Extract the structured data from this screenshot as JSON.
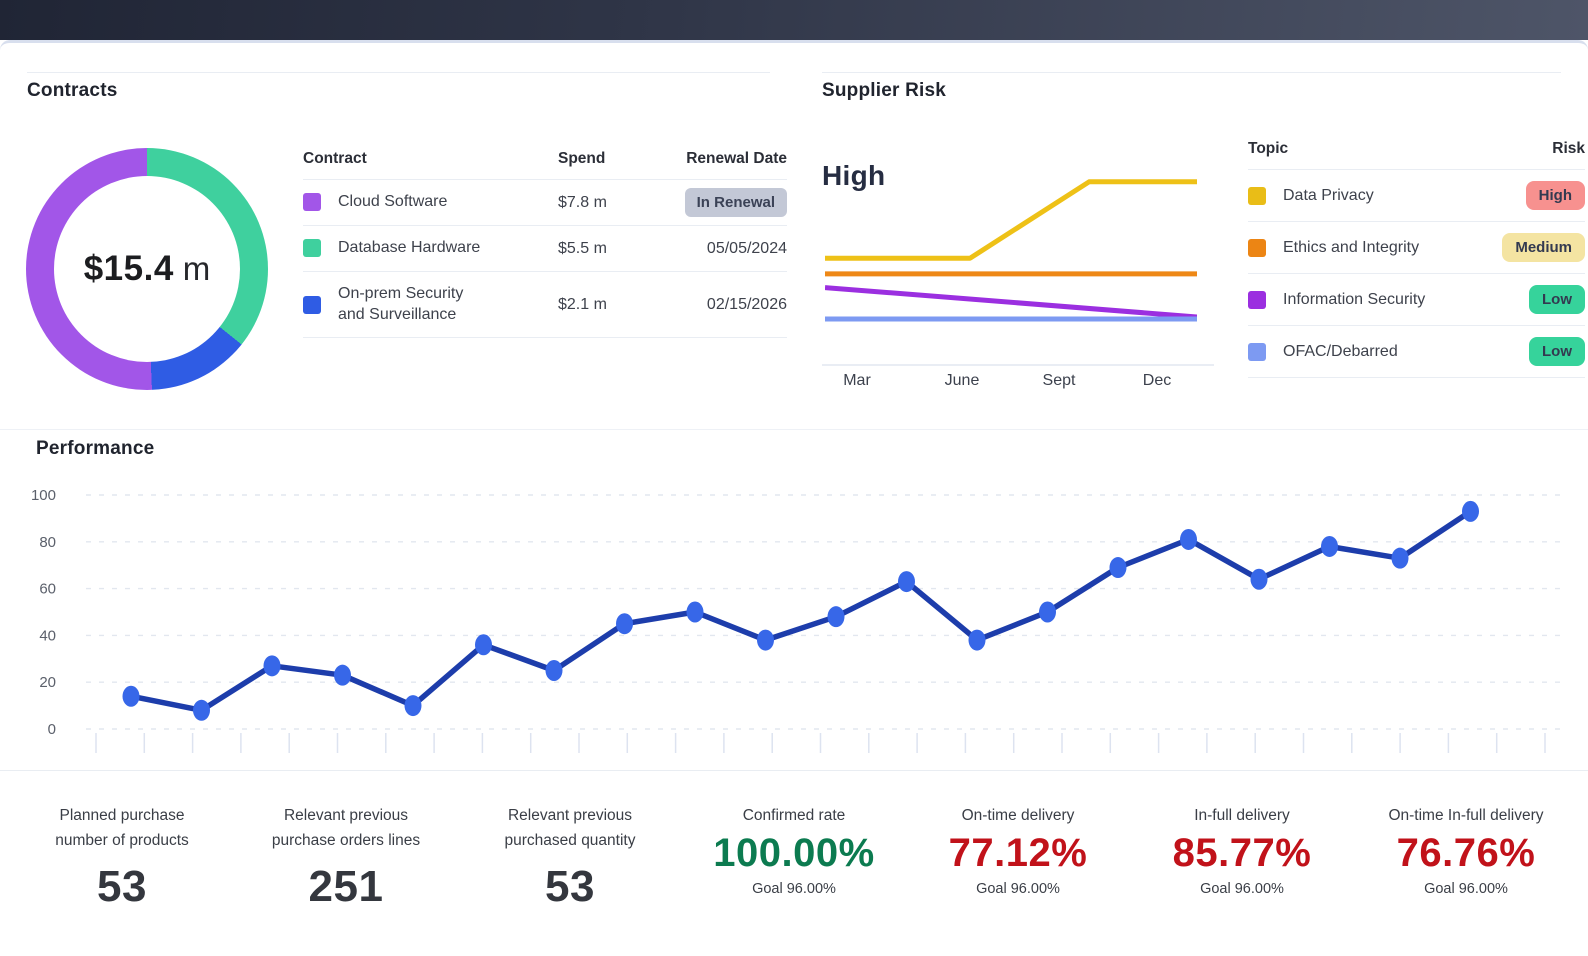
{
  "palette": {
    "topbar_left": "#202535",
    "topbar_right": "#4e5568",
    "kpi_green": "#0c7b50",
    "kpi_red": "#c1121a",
    "kpi_dark": "#34373e"
  },
  "contracts": {
    "title": "Contracts",
    "donut_center_value": "$15.4",
    "donut_center_unit": "m",
    "table": {
      "col_contract": "Contract",
      "col_spend": "Spend",
      "col_renewal": "Renewal Date",
      "rows": [
        {
          "name": "Cloud Software",
          "swatch": "#a256e8",
          "spend": "$7.8 m",
          "renewal": "In Renewal"
        },
        {
          "name": "Database Hardware",
          "swatch": "#3fd09e",
          "spend": "$5.5 m",
          "renewal": "05/05/2024"
        },
        {
          "name": "On-prem Security\nand Surveillance",
          "swatch": "#2f5ce4",
          "spend": "$2.1 m",
          "renewal": "02/15/2026"
        }
      ]
    }
  },
  "supplier_risk": {
    "title": "Supplier Risk",
    "level": "High",
    "x_labels": [
      "Mar",
      "June",
      "Sept",
      "Dec"
    ],
    "table": {
      "col_topic": "Topic",
      "col_risk": "Risk",
      "rows": [
        {
          "topic": "Data Privacy",
          "swatch": "#e9bd17",
          "risk": "High",
          "badge_bg": "#f7918f"
        },
        {
          "topic": "Ethics and Integrity",
          "swatch": "#ec8514",
          "risk": "Medium",
          "badge_bg": "#f4e4a2"
        },
        {
          "topic": "Information Security",
          "swatch": "#9b2fe0",
          "risk": "Low",
          "badge_bg": "#36d39b"
        },
        {
          "topic": "OFAC/Debarred",
          "swatch": "#7d9af2",
          "risk": "Low",
          "badge_bg": "#36d39b"
        }
      ]
    }
  },
  "performance": {
    "title": "Performance"
  },
  "kpis": [
    {
      "label": "Planned purchase\nnumber of products",
      "value": "53",
      "color": "#34373e"
    },
    {
      "label": "Relevant previous\npurchase orders lines",
      "value": "251",
      "color": "#34373e"
    },
    {
      "label": "Relevant previous\npurchased quantity",
      "value": "53",
      "color": "#34373e"
    },
    {
      "label": "Confirmed rate",
      "value": "100.00%",
      "color": "#0c7b50",
      "goal": "Goal 96.00%"
    },
    {
      "label": "On-time delivery",
      "value": "77.12%",
      "color": "#c1121a",
      "goal": "Goal 96.00%"
    },
    {
      "label": "In-full delivery",
      "value": "85.77%",
      "color": "#c1121a",
      "goal": "Goal 96.00%"
    },
    {
      "label": "On-time In-full delivery",
      "value": "76.76%",
      "color": "#c1121a",
      "goal": "Goal 96.00%"
    }
  ],
  "chart_data": [
    {
      "id": "contracts-donut",
      "type": "pie",
      "title": "Contracts",
      "center_label": "$15.4 m",
      "total": 15.4,
      "units": "$m",
      "slices": [
        {
          "label": "Database Hardware",
          "value": 5.5,
          "color": "#3fd09e"
        },
        {
          "label": "On-prem Security and Surveillance",
          "value": 2.1,
          "color": "#2f5ce4"
        },
        {
          "label": "Cloud Software",
          "value": 7.8,
          "color": "#a256e8"
        }
      ]
    },
    {
      "id": "supplier-risk-lines",
      "type": "line",
      "title": "Supplier Risk",
      "annotation": "High",
      "x_ticks": [
        "Mar",
        "June",
        "Sept",
        "Dec"
      ],
      "ylim": [
        0,
        100
      ],
      "series": [
        {
          "name": "Data Privacy",
          "color": "#eec117",
          "points": [
            [
              0,
              55
            ],
            [
              0.39,
              55
            ],
            [
              0.71,
              94
            ],
            [
              1,
              94
            ]
          ]
        },
        {
          "name": "Ethics and Integrity",
          "color": "#ee8816",
          "points": [
            [
              0,
              47
            ],
            [
              1,
              47
            ]
          ]
        },
        {
          "name": "Information Security",
          "color": "#9b2fe0",
          "points": [
            [
              0,
              40
            ],
            [
              1,
              25
            ]
          ]
        },
        {
          "name": "OFAC/Debarred",
          "color": "#7d9af2",
          "points": [
            [
              0,
              24
            ],
            [
              1,
              24
            ]
          ]
        }
      ]
    },
    {
      "id": "performance-line",
      "type": "line",
      "title": "Performance",
      "x": [
        1,
        2,
        3,
        4,
        5,
        6,
        7,
        8,
        9,
        10,
        11,
        12,
        13,
        14,
        15,
        16,
        17,
        18,
        19,
        20
      ],
      "values": [
        14,
        8,
        27,
        23,
        10,
        36,
        25,
        45,
        50,
        38,
        48,
        63,
        38,
        50,
        69,
        81,
        64,
        78,
        73,
        93
      ],
      "yticks": [
        0,
        20,
        40,
        60,
        80,
        100
      ],
      "ylim": [
        0,
        100
      ],
      "grid": "dashed-horizontal",
      "legend": "none",
      "line_color": "#1d3dab",
      "dot_color": "#3767e8"
    }
  ]
}
